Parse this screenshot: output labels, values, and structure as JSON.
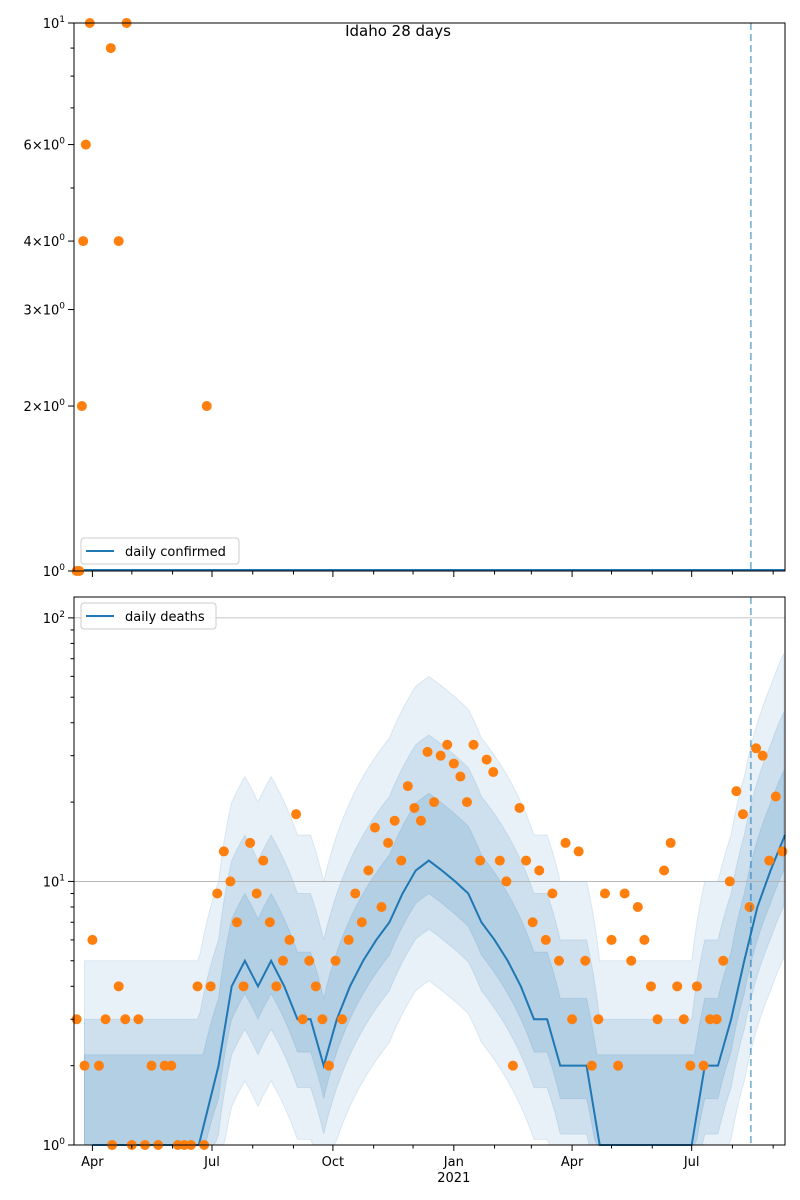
{
  "chart_data": [
    {
      "type": "scatter",
      "title": "Idaho 28 days",
      "yscale": "log",
      "ylim": [
        1,
        10
      ],
      "y_tick_labels": [
        "10^1",
        "6×10^0",
        "4×10^0",
        "3×10^0",
        "2×10^0",
        "10^0"
      ],
      "series": [
        {
          "name": "daily confirmed",
          "kind": "line",
          "color": "#1f77b4",
          "x": [
            "2020-03-18",
            "2021-09-10"
          ],
          "y": [
            1,
            1
          ]
        },
        {
          "kind": "points",
          "color": "#ff7f0e",
          "x": [
            "2020-03-20",
            "2020-03-22",
            "2020-03-24",
            "2020-03-25",
            "2020-03-27",
            "2020-03-30",
            "2020-04-15",
            "2020-04-21",
            "2020-04-27",
            "2020-06-27"
          ],
          "y": [
            1,
            1,
            2,
            4,
            6,
            10,
            9,
            4,
            10,
            2
          ]
        }
      ],
      "vline": {
        "x": "2021-08-15",
        "color": "#1f77b4",
        "style": "dashed"
      }
    },
    {
      "type": "scatter",
      "title": "",
      "yscale": "log",
      "ylim": [
        1,
        120
      ],
      "y_tick_labels": [
        "10^2",
        "10^1",
        "10^0"
      ],
      "x_tick_labels": [
        "Apr",
        "Jul",
        "Oct",
        "Jan",
        "Apr",
        "Jul"
      ],
      "x_year_label": "2021",
      "grid": "horizontal major",
      "band_color": "#1f77b4",
      "series": [
        {
          "name": "daily deaths",
          "kind": "line",
          "color": "#1f77b4",
          "x": [
            "2020-04-01",
            "2020-05-01",
            "2020-06-01",
            "2020-06-21",
            "2020-07-06",
            "2020-07-16",
            "2020-07-26",
            "2020-08-05",
            "2020-08-15",
            "2020-08-25",
            "2020-09-04",
            "2020-09-14",
            "2020-09-24",
            "2020-10-04",
            "2020-10-14",
            "2020-10-24",
            "2020-11-03",
            "2020-11-13",
            "2020-11-23",
            "2020-12-03",
            "2020-12-13",
            "2020-12-23",
            "2021-01-02",
            "2021-01-12",
            "2021-01-22",
            "2021-02-01",
            "2021-02-11",
            "2021-02-21",
            "2021-03-03",
            "2021-03-13",
            "2021-03-23",
            "2021-04-02",
            "2021-04-12",
            "2021-04-22",
            "2021-05-02",
            "2021-05-12",
            "2021-05-22",
            "2021-06-01",
            "2021-06-11",
            "2021-06-21",
            "2021-07-01",
            "2021-07-11",
            "2021-07-21",
            "2021-07-31",
            "2021-08-10",
            "2021-08-20",
            "2021-08-30",
            "2021-09-10"
          ],
          "y": [
            1,
            1,
            1,
            1,
            2,
            4,
            5,
            4,
            5,
            4,
            3,
            3,
            2,
            3,
            4,
            5,
            6,
            7,
            9,
            11,
            12,
            11,
            10,
            9,
            7,
            6,
            5,
            4,
            3,
            3,
            2,
            2,
            2,
            1,
            1,
            1,
            1,
            1,
            1,
            1,
            1,
            2,
            2,
            3,
            5,
            8,
            11,
            15
          ]
        },
        {
          "kind": "points",
          "color": "#ff7f0e",
          "x": [
            "2020-03-20",
            "2020-03-26",
            "2020-04-01",
            "2020-04-06",
            "2020-04-11",
            "2020-04-16",
            "2020-04-21",
            "2020-04-26",
            "2020-05-01",
            "2020-05-06",
            "2020-05-11",
            "2020-05-16",
            "2020-05-21",
            "2020-05-26",
            "2020-05-31",
            "2020-06-05",
            "2020-06-10",
            "2020-06-15",
            "2020-06-20",
            "2020-06-25",
            "2020-06-30",
            "2020-07-05",
            "2020-07-10",
            "2020-07-15",
            "2020-07-20",
            "2020-07-25",
            "2020-07-30",
            "2020-08-04",
            "2020-08-09",
            "2020-08-14",
            "2020-08-19",
            "2020-08-24",
            "2020-08-29",
            "2020-09-03",
            "2020-09-08",
            "2020-09-13",
            "2020-09-18",
            "2020-09-23",
            "2020-09-28",
            "2020-10-03",
            "2020-10-08",
            "2020-10-13",
            "2020-10-18",
            "2020-10-23",
            "2020-10-28",
            "2020-11-02",
            "2020-11-07",
            "2020-11-12",
            "2020-11-17",
            "2020-11-22",
            "2020-11-27",
            "2020-12-02",
            "2020-12-07",
            "2020-12-12",
            "2020-12-17",
            "2020-12-22",
            "2020-12-27",
            "2021-01-01",
            "2021-01-06",
            "2021-01-11",
            "2021-01-16",
            "2021-01-21",
            "2021-01-26",
            "2021-01-31",
            "2021-02-05",
            "2021-02-10",
            "2021-02-15",
            "2021-02-20",
            "2021-02-25",
            "2021-03-02",
            "2021-03-07",
            "2021-03-12",
            "2021-03-17",
            "2021-03-22",
            "2021-03-27",
            "2021-04-01",
            "2021-04-06",
            "2021-04-11",
            "2021-04-16",
            "2021-04-21",
            "2021-04-26",
            "2021-05-01",
            "2021-05-06",
            "2021-05-11",
            "2021-05-16",
            "2021-05-21",
            "2021-05-26",
            "2021-05-31",
            "2021-06-05",
            "2021-06-10",
            "2021-06-15",
            "2021-06-20",
            "2021-06-25",
            "2021-06-30",
            "2021-07-05",
            "2021-07-10",
            "2021-07-15",
            "2021-07-20",
            "2021-07-25",
            "2021-07-30",
            "2021-08-04",
            "2021-08-09",
            "2021-08-14",
            "2021-08-19",
            "2021-08-24",
            "2021-08-29",
            "2021-09-03",
            "2021-09-08"
          ],
          "y": [
            3,
            2,
            6,
            2,
            3,
            1,
            4,
            3,
            1,
            3,
            1,
            2,
            1,
            2,
            2,
            1,
            1,
            1,
            4,
            1,
            4,
            9,
            13,
            10,
            7,
            4,
            14,
            9,
            12,
            7,
            4,
            5,
            6,
            18,
            3,
            5,
            4,
            3,
            2,
            5,
            3,
            6,
            9,
            7,
            11,
            16,
            8,
            14,
            17,
            12,
            23,
            19,
            17,
            31,
            20,
            30,
            33,
            28,
            25,
            20,
            33,
            12,
            29,
            26,
            12,
            10,
            2,
            19,
            12,
            7,
            11,
            6,
            9,
            5,
            14,
            3,
            13,
            5,
            2,
            3,
            9,
            6,
            2,
            9,
            5,
            8,
            6,
            4,
            3,
            11,
            14,
            4,
            3,
            2,
            4,
            2,
            3,
            3,
            5,
            10,
            22,
            18,
            8,
            32,
            30,
            12,
            21,
            13
          ]
        }
      ],
      "vline": {
        "x": "2021-08-15",
        "color": "#1f77b4",
        "style": "dashed"
      }
    }
  ]
}
